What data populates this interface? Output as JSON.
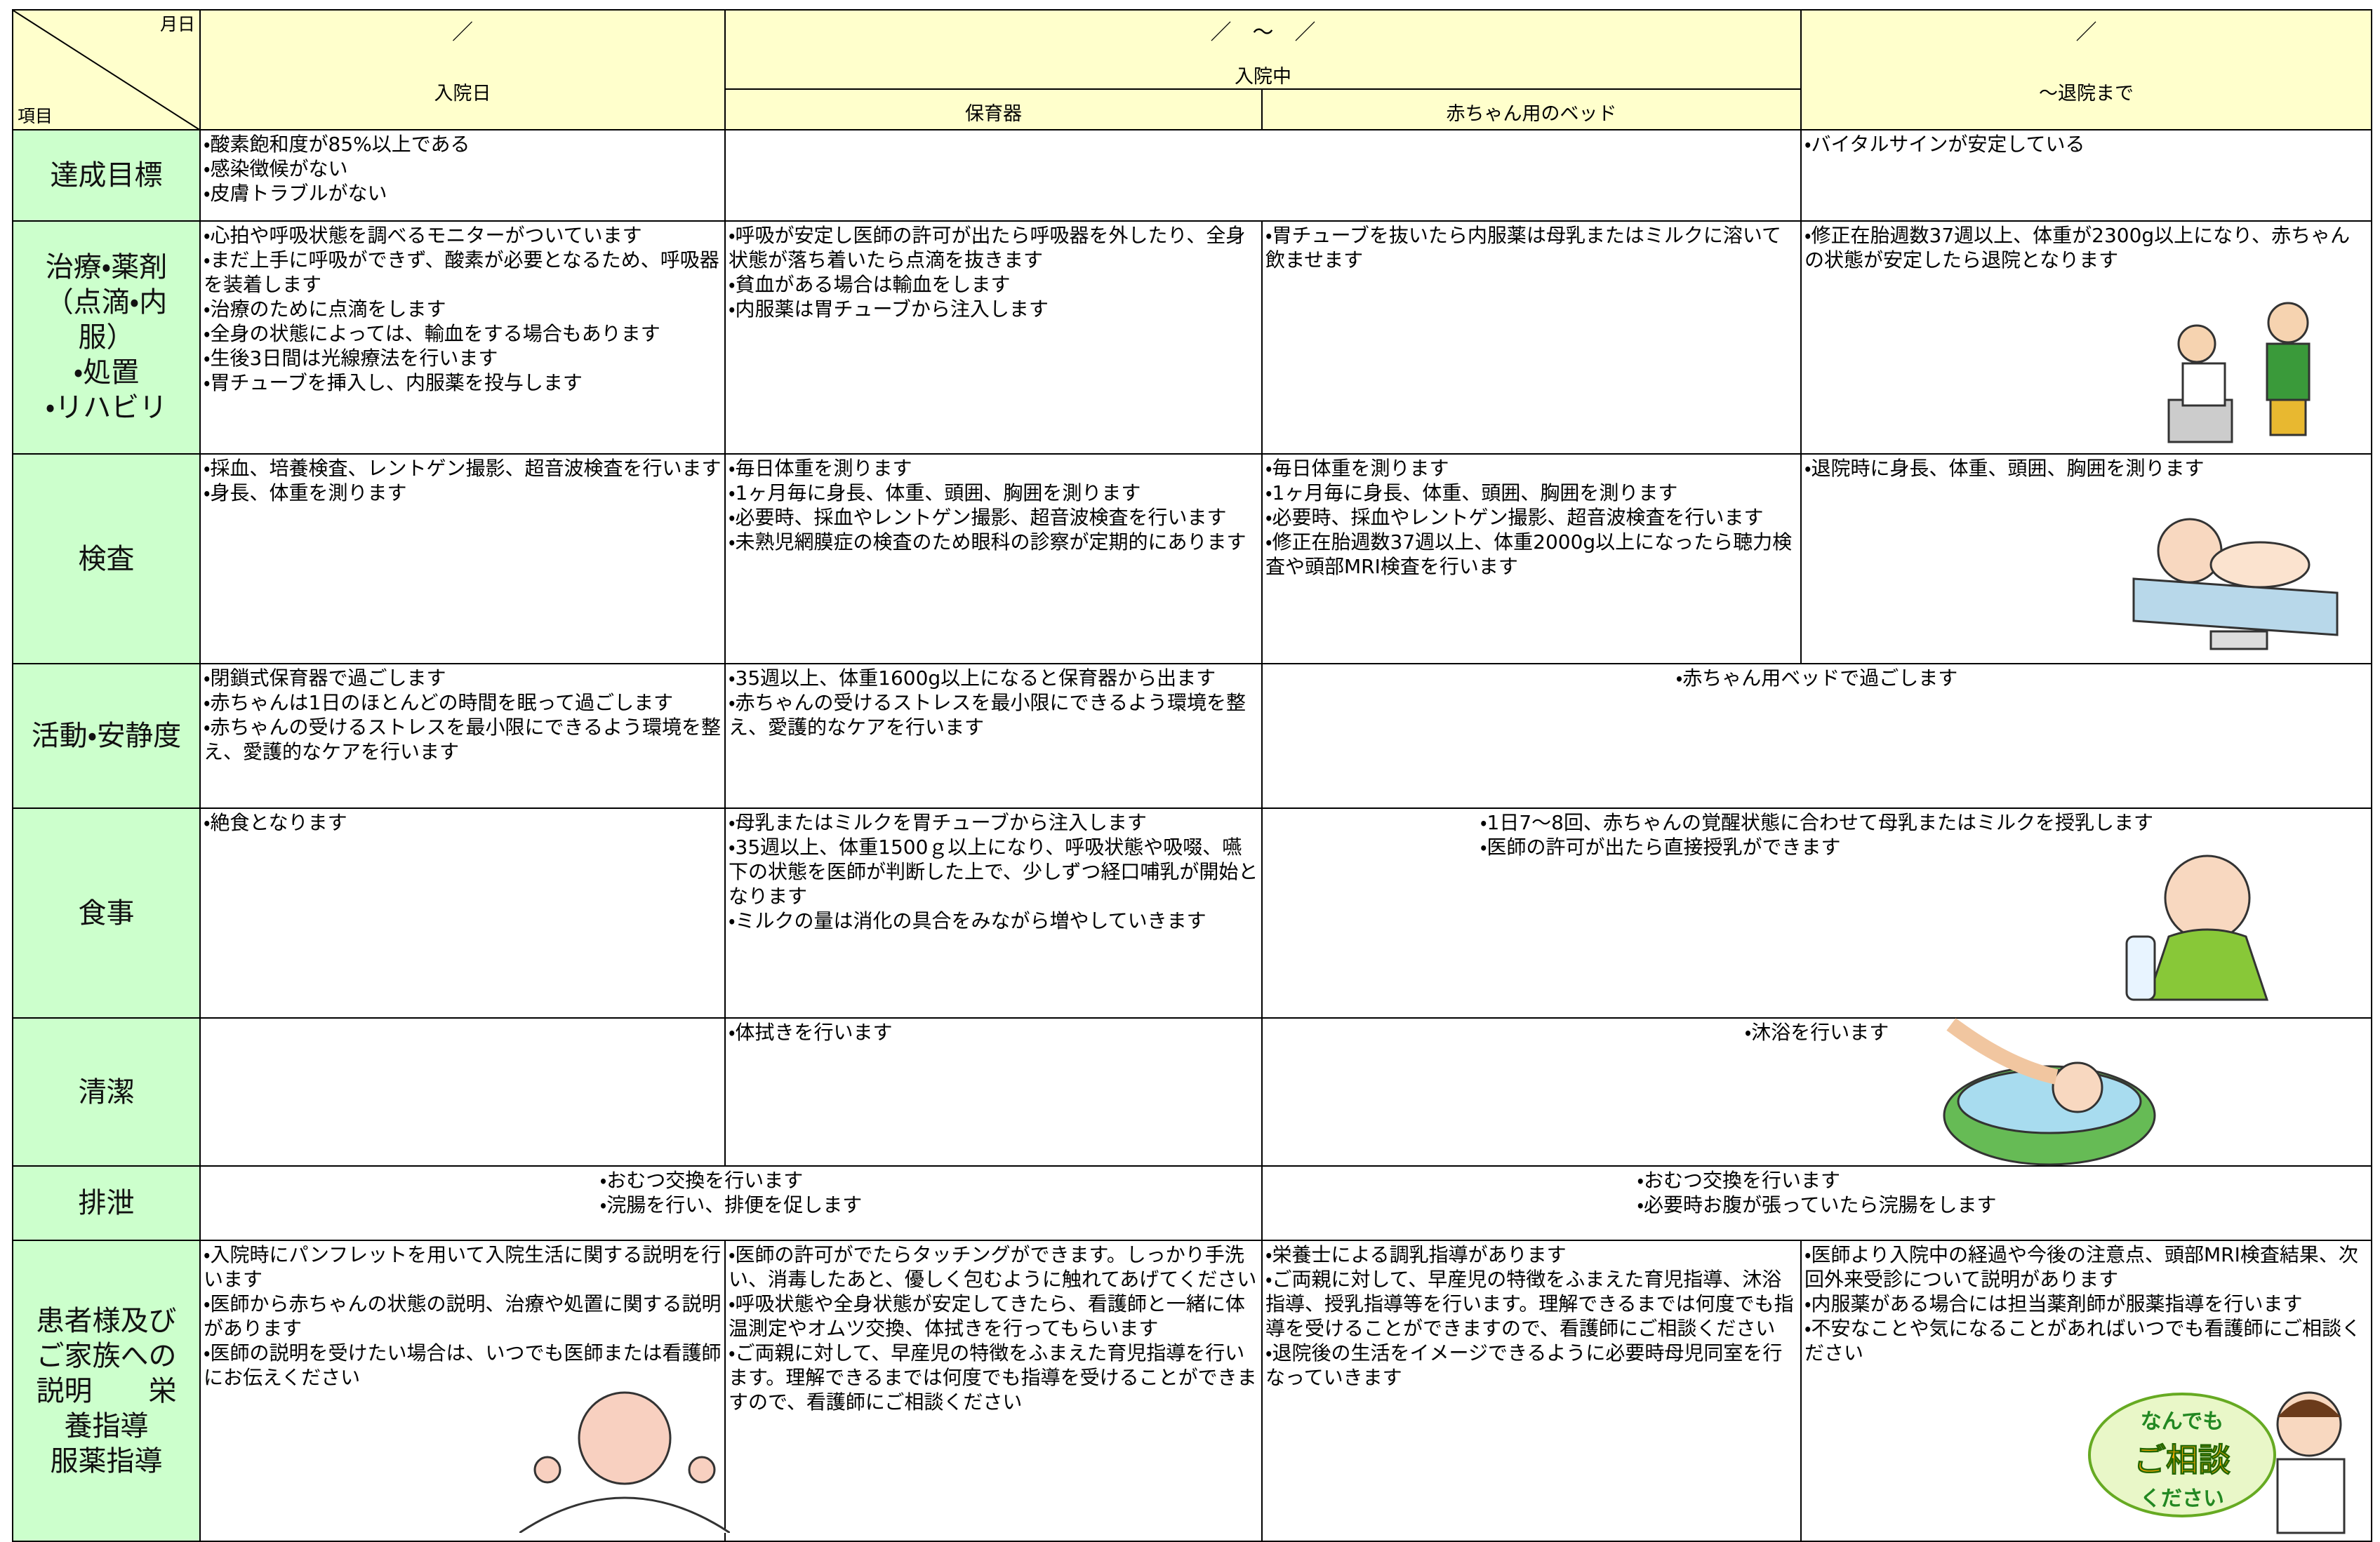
{
  "header": {
    "corner_top": "月日",
    "corner_bottom": "項目",
    "admission_date": "／",
    "admission_label": "入院日",
    "stay_date": "／　～　／",
    "stay_label": "入院中",
    "incubator_label": "保育器",
    "bed_label": "赤ちゃん用のベッド",
    "discharge_date": "／",
    "discharge_label": "～退院まで"
  },
  "rows": [
    {
      "label": "達成目標",
      "cells": [
        [
          "・酸素飽和度が85%以上である",
          "・感染徴候がない",
          "・皮膚トラブルがない"
        ],
        [],
        [
          "・バイタルサインが安定している"
        ]
      ]
    },
    {
      "label": "治療・薬剤\n（点滴・内\n服）\n・処置\n・リハビリ",
      "cells": [
        [
          "・心拍や呼吸状態を調べるモニターがついています",
          "・まだ上手に呼吸ができず、酸素が必要となるため、呼吸器を装着します",
          "・治療のために点滴をします",
          "・全身の状態によっては、輸血をする場合もあります",
          "・生後3日間は光線療法を行います",
          "・胃チューブを挿入し、内服薬を投与します"
        ],
        [
          "・呼吸が安定し医師の許可が出たら呼吸器を外したり、全身状態が落ち着いたら点滴を抜きます",
          "・貧血がある場合は輸血をします",
          "・内服薬は胃チューブから注入します"
        ],
        [
          "・胃チューブを抜いたら内服薬は母乳またはミルクに溶いて飲ませます"
        ],
        [
          "・修正在胎週数37週以上、体重が2300g以上になり、赤ちゃんの状態が安定したら退院となります"
        ]
      ]
    },
    {
      "label": "検査",
      "cells": [
        [
          "・採血、培養検査、レントゲン撮影、超音波検査を行います",
          "・身長、体重を測ります"
        ],
        [
          "・毎日体重を測ります",
          "・1ヶ月毎に身長、体重、頭囲、胸囲を測ります",
          "・必要時、採血やレントゲン撮影、超音波検査を行います",
          "・未熟児網膜症の検査のため眼科の診察が定期的にあります"
        ],
        [
          "・毎日体重を測ります",
          "・1ヶ月毎に身長、体重、頭囲、胸囲を測ります",
          "・必要時、採血やレントゲン撮影、超音波検査を行います",
          "・修正在胎週数37週以上、体重2000g以上になったら聴力検査や頭部MRI検査を行います"
        ],
        [
          "・退院時に身長、体重、頭囲、胸囲を測ります"
        ]
      ]
    },
    {
      "label": "活動・安静度",
      "cells": [
        [
          "・閉鎖式保育器で過ごします",
          "・赤ちゃんは1日のほとんどの時間を眠って過ごします",
          "・赤ちゃんの受けるストレスを最小限にできるよう環境を整え、愛護的なケアを行います"
        ],
        [
          "・35週以上、体重1600g以上になると保育器から出ます",
          "・赤ちゃんの受けるストレスを最小限にできるよう環境を整え、愛護的なケアを行います"
        ],
        [
          "・赤ちゃん用ベッドで過ごします"
        ]
      ]
    },
    {
      "label": "食事",
      "cells": [
        [
          "・絶食となります"
        ],
        [
          "・母乳またはミルクを胃チューブから注入します",
          "・35週以上、体重1500ｇ以上になり、呼吸状態や吸啜、嚥下の状態を医師が判断した上で、少しずつ経口哺乳が開始となります",
          "・ミルクの量は消化の具合をみながら増やしていきます"
        ],
        [
          "・1日7～8回、赤ちゃんの覚醒状態に合わせて母乳またはミルクを授乳します",
          "・医師の許可が出たら直接授乳ができます"
        ]
      ]
    },
    {
      "label": "清潔",
      "cells": [
        [],
        [
          "・体拭きを行います"
        ],
        [
          "・沐浴を行います"
        ]
      ]
    },
    {
      "label": "排泄",
      "cells": [
        [
          "・おむつ交換を行います",
          "・浣腸を行い、排便を促します"
        ],
        [
          "・おむつ交換を行います",
          "・必要時お腹が張っていたら浣腸をします"
        ]
      ]
    },
    {
      "label": "患者様及び\nご家族への\n説明　　栄\n養指導\n服薬指導",
      "cells": [
        [
          "・入院時にパンフレットを用いて入院生活に関する説明を行います",
          "・医師から赤ちゃんの状態の説明、治療や処置に関する説明があります",
          "・医師の説明を受けたい場合は、いつでも医師または看護師にお伝えください"
        ],
        [
          "・医師の許可がでたらタッチングができます。しっかり手洗い、消毒したあと、優しく包むように触れてあげてください",
          "・呼吸状態や全身状態が安定してきたら、看護師と一緒に体温測定やオムツ交換、体拭きを行ってもらいます",
          "・ご両親に対して、早産児の特徴をふまえた育児指導を行います。理解できるまでは何度でも指導を受けることができますので、看護師にご相談ください"
        ],
        [
          "・栄養士による調乳指導があります",
          "・ご両親に対して、早産児の特徴をふまえた育児指導、沐浴指導、授乳指導等を行います。理解できるまでは何度でも指導を受けることができますので、看護師にご相談ください",
          "・退院後の生活をイメージできるように必要時母児同室を行なっていきます"
        ],
        [
          "・医師より入院中の経過や今後の注意点、頭部MRI検査結果、次回外来受診について説明があります",
          "・内服薬がある場合には担当薬剤師が服薬指導を行います",
          "・不安なことや気になることがあればいつでも看護師にご相談ください"
        ]
      ]
    }
  ],
  "badge": [
    "なんでも",
    "ご相談",
    "ください"
  ]
}
